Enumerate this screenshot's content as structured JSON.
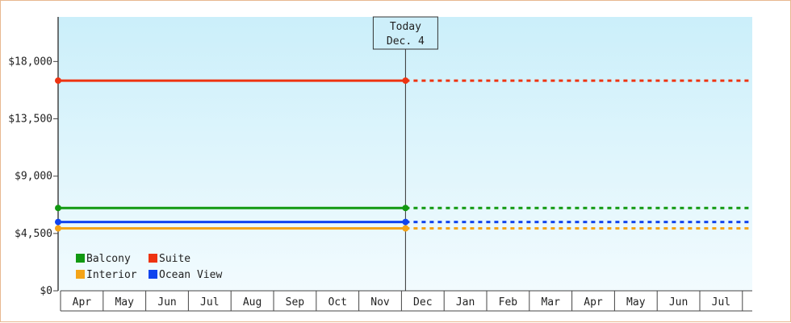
{
  "chart_data": {
    "type": "line",
    "x": [
      "Apr",
      "May",
      "Jun",
      "Jul",
      "Aug",
      "Sep",
      "Oct",
      "Nov",
      "Dec",
      "Jan",
      "Feb",
      "Mar",
      "Apr",
      "May",
      "Jun",
      "Jul"
    ],
    "ylim": [
      0,
      21500
    ],
    "yticks": [
      {
        "value": 0,
        "label": "$0"
      },
      {
        "value": 4500,
        "label": "$4,500"
      },
      {
        "value": 9000,
        "label": "$9,000"
      },
      {
        "value": 13500,
        "label": "$13,500"
      },
      {
        "value": 18000,
        "label": "$18,000"
      }
    ],
    "today": {
      "line1": "Today",
      "line2": "Dec. 4",
      "x_index": 8
    },
    "series": [
      {
        "name": "Balcony",
        "color": "#119911",
        "value": 6500
      },
      {
        "name": "Suite",
        "color": "#ee3311",
        "value": 16500
      },
      {
        "name": "Interior",
        "color": "#f4a418",
        "value": 4900
      },
      {
        "name": "Ocean View",
        "color": "#1144ee",
        "value": 5400
      }
    ],
    "legend_placement": "bottom-left",
    "grid": false
  }
}
